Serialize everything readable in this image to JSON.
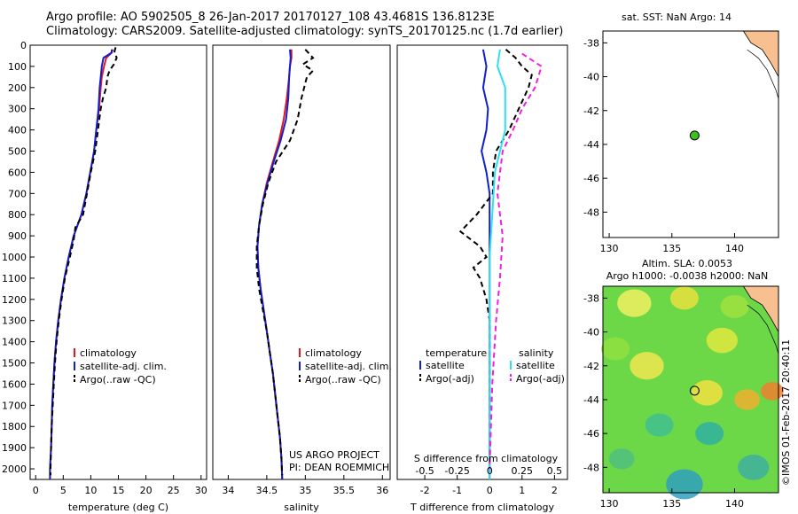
{
  "header": {
    "line1": "Argo profile: AO 5902505_8 26-Jan-2017 20170127_108 43.4681S 136.8123E",
    "line2": "Climatology: CARS2009. Satellite-adjusted climatology: synTS_20170125.nc (1.7d earlier)"
  },
  "colors": {
    "climatology": "#e8141a",
    "satellite": "#1020d0",
    "argo": "#000000",
    "sat_salinity": "#30e0f0",
    "argo_salinity": "#f020e0",
    "land": "#f8c090",
    "marker": "#40c020"
  },
  "chart_data": [
    {
      "type": "line",
      "panel": "temperature",
      "xlabel": "temperature (deg C)",
      "xlim": [
        -1,
        31
      ],
      "xticks": [
        0,
        5,
        10,
        15,
        20,
        25,
        30
      ],
      "ylim": [
        2050,
        0
      ],
      "yticks": [
        0,
        100,
        200,
        300,
        400,
        500,
        600,
        700,
        800,
        900,
        1000,
        1100,
        1200,
        1300,
        1400,
        1500,
        1600,
        1700,
        1800,
        1900,
        2000
      ],
      "legend": [
        "climatology",
        "satellite-adj. clim.",
        "Argo(..raw -QC)"
      ],
      "series": [
        {
          "name": "climatology",
          "style": "solid",
          "color": "#e8141a",
          "points": [
            [
              14,
              20
            ],
            [
              13.6,
              40
            ],
            [
              12.8,
              60
            ],
            [
              12.4,
              100
            ],
            [
              12,
              150
            ],
            [
              11.8,
              200
            ],
            [
              11.5,
              300
            ],
            [
              11.0,
              400
            ],
            [
              10.6,
              500
            ],
            [
              9.9,
              600
            ],
            [
              9.2,
              700
            ],
            [
              8.3,
              800
            ],
            [
              6.9,
              900
            ],
            [
              6.0,
              1000
            ],
            [
              5.2,
              1100
            ],
            [
              4.6,
              1200
            ],
            [
              4.1,
              1300
            ],
            [
              3.7,
              1400
            ],
            [
              3.4,
              1500
            ],
            [
              3.2,
              1600
            ],
            [
              3.0,
              1700
            ],
            [
              2.9,
              1800
            ],
            [
              2.8,
              1900
            ],
            [
              2.6,
              2000
            ],
            [
              2.6,
              2050
            ]
          ]
        },
        {
          "name": "satellite-adj. clim.",
          "style": "solid",
          "color": "#1020d0",
          "points": [
            [
              13.8,
              20
            ],
            [
              13.8,
              35
            ],
            [
              12.3,
              60
            ],
            [
              12.0,
              100
            ],
            [
              11.6,
              200
            ],
            [
              11.4,
              300
            ],
            [
              11.0,
              400
            ],
            [
              10.6,
              500
            ],
            [
              9.9,
              600
            ],
            [
              9.2,
              700
            ],
            [
              8.3,
              800
            ],
            [
              6.9,
              900
            ],
            [
              6.0,
              1000
            ],
            [
              5.2,
              1100
            ],
            [
              4.6,
              1200
            ],
            [
              4.1,
              1300
            ],
            [
              3.7,
              1400
            ],
            [
              3.4,
              1500
            ],
            [
              3.2,
              1600
            ],
            [
              3.0,
              1700
            ],
            [
              2.9,
              1800
            ],
            [
              2.8,
              1900
            ],
            [
              2.6,
              2000
            ],
            [
              2.6,
              2050
            ]
          ]
        },
        {
          "name": "Argo(..raw -QC)",
          "style": "dashed",
          "color": "#000000",
          "points": [
            [
              14.5,
              10
            ],
            [
              14.3,
              30
            ],
            [
              14.7,
              60
            ],
            [
              14.2,
              90
            ],
            [
              13.4,
              120
            ],
            [
              13.0,
              150
            ],
            [
              12.8,
              200
            ],
            [
              12.2,
              250
            ],
            [
              11.8,
              300
            ],
            [
              11.3,
              400
            ],
            [
              10.8,
              500
            ],
            [
              10.0,
              600
            ],
            [
              9.3,
              700
            ],
            [
              8.6,
              800
            ],
            [
              7.2,
              860
            ],
            [
              6.9,
              920
            ],
            [
              6.2,
              1000
            ],
            [
              5.3,
              1100
            ],
            [
              4.7,
              1200
            ],
            [
              4.2,
              1300
            ],
            [
              3.8,
              1400
            ],
            [
              3.5,
              1500
            ],
            [
              3.3,
              1600
            ],
            [
              3.1,
              1700
            ],
            [
              2.9,
              1800
            ],
            [
              2.8,
              1900
            ],
            [
              2.7,
              2000
            ],
            [
              2.7,
              2030
            ]
          ]
        }
      ]
    },
    {
      "type": "line",
      "panel": "salinity",
      "xlabel": "salinity",
      "xlim": [
        33.8,
        36.1
      ],
      "xticks": [
        34,
        34.5,
        35,
        35.5,
        36
      ],
      "ylim": [
        2050,
        0
      ],
      "legend": [
        "climatology",
        "satellite-adj. clim.",
        "Argo(..raw -QC)"
      ],
      "annotation": [
        "US ARGO PROJECT",
        "PI: DEAN ROEMMICH"
      ],
      "series": [
        {
          "name": "climatology",
          "style": "solid",
          "color": "#e8141a",
          "points": [
            [
              34.82,
              20
            ],
            [
              34.82,
              60
            ],
            [
              34.8,
              100
            ],
            [
              34.79,
              150
            ],
            [
              34.76,
              250
            ],
            [
              34.72,
              350
            ],
            [
              34.66,
              450
            ],
            [
              34.58,
              550
            ],
            [
              34.5,
              650
            ],
            [
              34.44,
              750
            ],
            [
              34.4,
              850
            ],
            [
              34.38,
              950
            ],
            [
              34.39,
              1050
            ],
            [
              34.42,
              1150
            ],
            [
              34.46,
              1250
            ],
            [
              34.5,
              1350
            ],
            [
              34.54,
              1450
            ],
            [
              34.58,
              1550
            ],
            [
              34.61,
              1650
            ],
            [
              34.64,
              1750
            ],
            [
              34.67,
              1850
            ],
            [
              34.69,
              1950
            ],
            [
              34.7,
              2050
            ]
          ]
        },
        {
          "name": "satellite-adj. clim.",
          "style": "solid",
          "color": "#1020d0",
          "points": [
            [
              34.8,
              20
            ],
            [
              34.81,
              60
            ],
            [
              34.8,
              100
            ],
            [
              34.79,
              150
            ],
            [
              34.78,
              250
            ],
            [
              34.75,
              350
            ],
            [
              34.68,
              450
            ],
            [
              34.59,
              550
            ],
            [
              34.51,
              650
            ],
            [
              34.44,
              750
            ],
            [
              34.4,
              850
            ],
            [
              34.38,
              950
            ],
            [
              34.39,
              1050
            ],
            [
              34.42,
              1150
            ],
            [
              34.46,
              1250
            ],
            [
              34.5,
              1350
            ],
            [
              34.54,
              1450
            ],
            [
              34.58,
              1550
            ],
            [
              34.61,
              1650
            ],
            [
              34.64,
              1750
            ],
            [
              34.67,
              1850
            ],
            [
              34.69,
              1950
            ],
            [
              34.7,
              2050
            ]
          ]
        },
        {
          "name": "Argo(..raw -QC)",
          "style": "dashed",
          "color": "#000000",
          "points": [
            [
              35.0,
              20
            ],
            [
              35.1,
              60
            ],
            [
              34.97,
              90
            ],
            [
              35.1,
              120
            ],
            [
              35.02,
              150
            ],
            [
              34.95,
              250
            ],
            [
              34.9,
              350
            ],
            [
              34.8,
              450
            ],
            [
              34.62,
              550
            ],
            [
              34.52,
              650
            ],
            [
              34.45,
              750
            ],
            [
              34.4,
              850
            ],
            [
              34.37,
              950
            ],
            [
              34.37,
              1050
            ],
            [
              34.4,
              1150
            ],
            [
              34.45,
              1250
            ],
            [
              34.5,
              1350
            ],
            [
              34.54,
              1450
            ],
            [
              34.58,
              1550
            ],
            [
              34.61,
              1650
            ],
            [
              34.64,
              1750
            ],
            [
              34.67,
              1850
            ],
            [
              34.69,
              1950
            ],
            [
              34.7,
              2030
            ]
          ]
        }
      ]
    },
    {
      "type": "line",
      "panel": "difference",
      "xlabel": "T difference from climatology",
      "xlim": [
        -2.85,
        2.4
      ],
      "xticks": [
        -2,
        -1,
        0,
        1,
        2
      ],
      "top_label": "S difference from climatology",
      "top_ticks": [
        "-0.5",
        "-0.25",
        "0",
        "0.25",
        "0.5"
      ],
      "ylim": [
        2050,
        0
      ],
      "legend_left_title": "temperature",
      "legend_right_title": "salinity",
      "legend": [
        "satellite",
        "Argo(-adj)",
        "satellite",
        "Argo(-adj)"
      ],
      "series": [
        {
          "name": "T satellite",
          "style": "solid",
          "color": "#1020d0",
          "points": [
            [
              -0.2,
              20
            ],
            [
              -0.1,
              100
            ],
            [
              -0.2,
              200
            ],
            [
              -0.05,
              300
            ],
            [
              -0.1,
              400
            ],
            [
              -0.25,
              500
            ],
            [
              -0.1,
              600
            ],
            [
              0.0,
              700
            ],
            [
              0,
              2050
            ]
          ]
        },
        {
          "name": "T Argo(-adj)",
          "style": "dashed",
          "color": "#000000",
          "points": [
            [
              0.5,
              20
            ],
            [
              0.8,
              60
            ],
            [
              1.0,
              100
            ],
            [
              1.3,
              140
            ],
            [
              1.2,
              200
            ],
            [
              0.9,
              300
            ],
            [
              0.6,
              400
            ],
            [
              0.2,
              500
            ],
            [
              0.1,
              600
            ],
            [
              0.1,
              700
            ],
            [
              -0.4,
              800
            ],
            [
              -0.9,
              880
            ],
            [
              -0.3,
              950
            ],
            [
              -0.1,
              1000
            ],
            [
              -0.5,
              1050
            ],
            [
              -0.3,
              1100
            ],
            [
              -0.1,
              1200
            ],
            [
              0,
              1300
            ],
            [
              0,
              2000
            ]
          ]
        },
        {
          "name": "S satellite",
          "style": "solid",
          "color": "#30e0f0",
          "points": [
            [
              0.08,
              20
            ],
            [
              0.06,
              100
            ],
            [
              0.12,
              200
            ],
            [
              0.12,
              400
            ],
            [
              0.04,
              600
            ],
            [
              0.02,
              800
            ],
            [
              0,
              1000
            ],
            [
              0,
              2050
            ]
          ]
        },
        {
          "name": "S Argo(-adj)",
          "style": "dashed",
          "color": "#f020e0",
          "points": [
            [
              0.25,
              40
            ],
            [
              0.4,
              100
            ],
            [
              0.35,
              200
            ],
            [
              0.25,
              300
            ],
            [
              0.18,
              400
            ],
            [
              0.1,
              500
            ],
            [
              0.06,
              700
            ],
            [
              0.1,
              900
            ],
            [
              0.08,
              1100
            ],
            [
              0.05,
              1300
            ],
            [
              0.02,
              1600
            ],
            [
              0,
              2000
            ]
          ]
        }
      ]
    },
    {
      "type": "scatter",
      "panel": "map-sst",
      "title": "sat. SST: NaN Argo: 14",
      "xlim": [
        129.5,
        143.5
      ],
      "ylim": [
        -49.5,
        -37.3
      ],
      "xticks": [
        130,
        135,
        140
      ],
      "yticks": [
        -38,
        -40,
        -42,
        -44,
        -46,
        -48
      ],
      "points": [
        {
          "x": 136.81,
          "y": -43.47
        }
      ]
    },
    {
      "type": "heatmap",
      "panel": "map-sla",
      "title1": "Altim. SLA: 0.0053",
      "title2": "Argo h1000: -0.0038 h2000: NaN",
      "xlim": [
        129.5,
        143.5
      ],
      "ylim": [
        -49.5,
        -37.3
      ],
      "xticks": [
        130,
        135,
        140
      ],
      "yticks": [
        -38,
        -40,
        -42,
        -44,
        -46,
        -48
      ],
      "points": [
        {
          "x": 136.81,
          "y": -43.47
        }
      ]
    }
  ],
  "watermark": "©IMOS 01-Feb-2017 20:40:11"
}
